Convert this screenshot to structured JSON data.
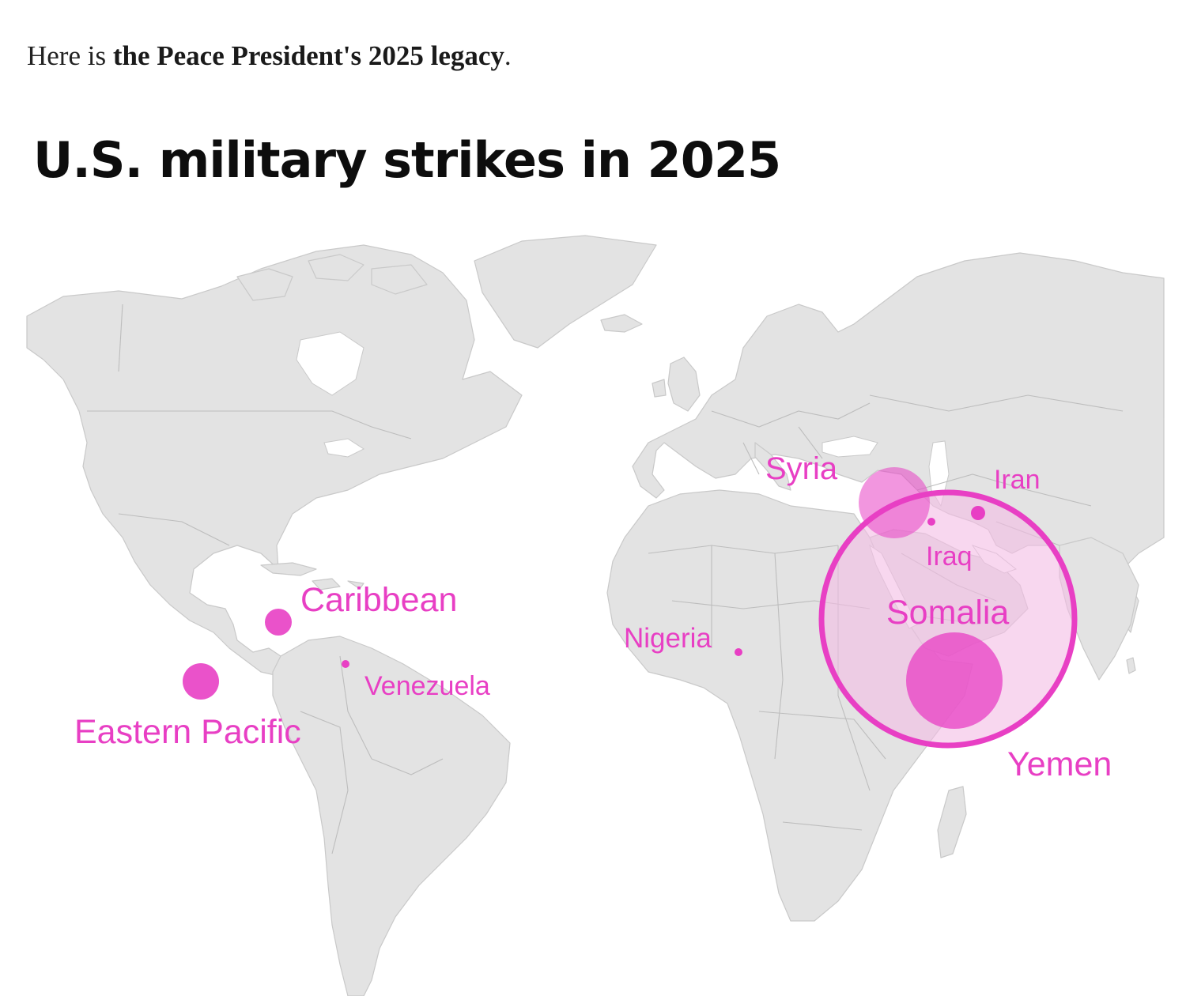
{
  "intro": {
    "prefix": "Here is ",
    "emphasis": "the Peace President's 2025 legacy",
    "suffix": "."
  },
  "map": {
    "title": "U.S. military strikes in 2025",
    "accent_color": "#e83fc4",
    "land_color": "#e3e3e3",
    "locations": [
      {
        "name": "Eastern Pacific",
        "size": "medium"
      },
      {
        "name": "Caribbean",
        "size": "small"
      },
      {
        "name": "Venezuela",
        "size": "tiny"
      },
      {
        "name": "Nigeria",
        "size": "tiny"
      },
      {
        "name": "Syria",
        "size": "medium-large"
      },
      {
        "name": "Iraq",
        "size": "tiny"
      },
      {
        "name": "Iran",
        "size": "tiny"
      },
      {
        "name": "Somalia",
        "size": "large"
      },
      {
        "name": "Yemen",
        "size": "largest"
      }
    ]
  }
}
